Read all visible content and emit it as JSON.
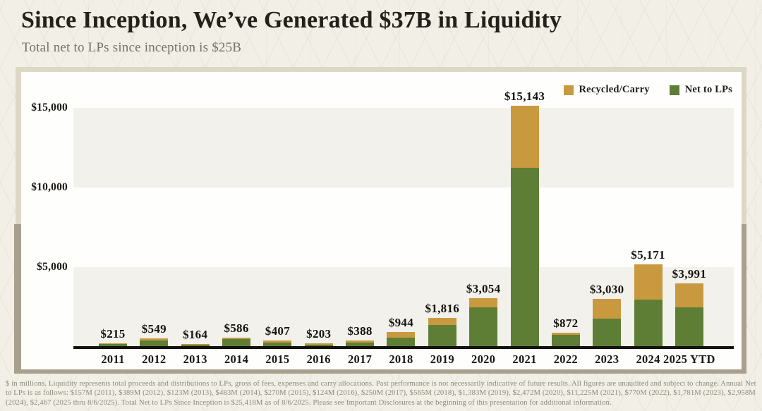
{
  "header": {
    "title": "Since Inception, We’ve Generated $37B in Liquidity",
    "subtitle": "Total net to LPs since inception is $25B"
  },
  "colors": {
    "recycled_carry": "#c9993f",
    "net_to_lps": "#5e7e35",
    "axis": "#14120d",
    "grid_band": "#f2f1ec",
    "card_background": "#fefefd",
    "page_background": "#f2efe6",
    "frame_upper": "#ddd8c6",
    "frame_lower": "#a89f8e"
  },
  "legend": [
    {
      "label": "Recycled/Carry",
      "color": "#c9993f"
    },
    {
      "label": "Net to LPs",
      "color": "#5e7e35"
    }
  ],
  "chart_data": {
    "type": "bar",
    "stacked": true,
    "units": "$ in millions",
    "categories": [
      "2011",
      "2012",
      "2013",
      "2014",
      "2015",
      "2016",
      "2017",
      "2018",
      "2019",
      "2020",
      "2021",
      "2022",
      "2023",
      "2024",
      "2025 YTD"
    ],
    "series": [
      {
        "name": "Net to LPs",
        "color": "#5e7e35",
        "values": [
          157,
          389,
          123,
          483,
          270,
          124,
          250,
          565,
          1383,
          2472,
          11225,
          770,
          1781,
          2958,
          2467
        ]
      },
      {
        "name": "Recycled/Carry",
        "color": "#c9993f",
        "values": [
          58,
          160,
          41,
          103,
          137,
          79,
          138,
          379,
          433,
          582,
          3918,
          102,
          1249,
          2213,
          1524
        ]
      }
    ],
    "totals": [
      215,
      549,
      164,
      586,
      407,
      203,
      388,
      944,
      1816,
      3054,
      15143,
      872,
      3030,
      5171,
      3991
    ],
    "total_labels": [
      "$215",
      "$549",
      "$164",
      "$586",
      "$407",
      "$203",
      "$388",
      "$944",
      "$1,816",
      "$3,054",
      "$15,143",
      "$872",
      "$3,030",
      "$5,171",
      "$3,991"
    ],
    "yticks": [
      5000,
      10000,
      15000
    ],
    "ytick_labels": [
      "$5,000",
      "$10,000",
      "$15,000"
    ],
    "ylim": [
      0,
      16000
    ],
    "legend_position": "top-right",
    "grid": "alternating horizontal bands"
  },
  "footnote": "$ in millions. Liquidity represents total proceeds and distributions to LPs, gross of fees, expenses and carry allocations. Past performance is not necessarily indicative of future results. All figures are unaudited and subject to change. Annual Net to LPs is as follows: $157M (2011), $389M (2012), $123M (2013), $483M (2014), $270M (2015), $124M (2016), $250M (2017), $565M (2018), $1,383M (2019), $2,472M (2020), $11,225M (2021), $770M (2022), $1,781M (2023), $2,958M (2024), $2,467 (2025 thru 8/6/2025). Total Net to LPs Since Inception is $25,418M as of 8/6/2025. Please see Important Disclosures at the beginning of this presentation for additional information."
}
